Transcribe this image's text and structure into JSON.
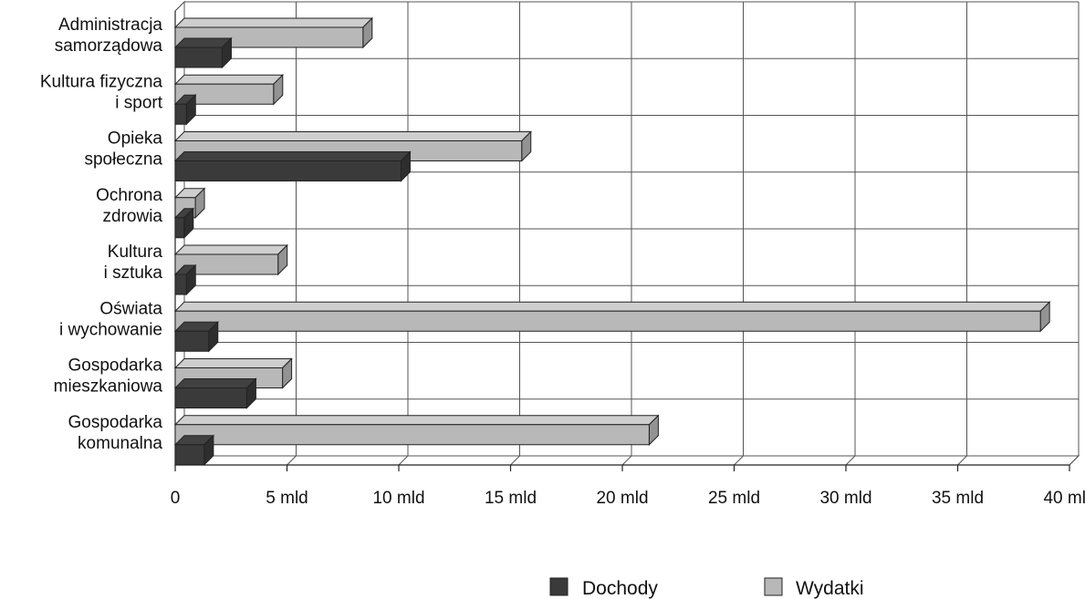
{
  "chart_data": {
    "type": "bar",
    "orientation": "horizontal",
    "three_d": true,
    "categories": [
      [
        "Administracja",
        "samorządowa"
      ],
      [
        "Kultura fizyczna",
        "i sport"
      ],
      [
        "Opieka",
        "społeczna"
      ],
      [
        "Ochrona",
        "zdrowia"
      ],
      [
        "Kultura",
        "i sztuka"
      ],
      [
        "Oświata",
        "i wychowanie"
      ],
      [
        "Gospodarka",
        "mieszkaniowa"
      ],
      [
        "Gospodarka",
        "komunalna"
      ]
    ],
    "series": [
      {
        "name": "Wydatki",
        "color": "#b8b8b8",
        "values": [
          8.4,
          4.4,
          15.5,
          0.9,
          4.6,
          38.7,
          4.8,
          21.2
        ]
      },
      {
        "name": "Dochody",
        "color": "#3a3a3a",
        "values": [
          2.1,
          0.5,
          10.1,
          0.4,
          0.5,
          1.5,
          3.2,
          1.3
        ]
      }
    ],
    "xlim": [
      0,
      40
    ],
    "xticks": [
      0,
      5,
      10,
      15,
      20,
      25,
      30,
      35,
      40
    ],
    "xtick_labels": [
      "0",
      "5 mld",
      "10 mld",
      "15 mld",
      "20 mld",
      "25 mld",
      "30 mld",
      "35 mld",
      "40 mld"
    ],
    "grid": true,
    "legend": {
      "position": "bottom",
      "items": [
        {
          "name": "Dochody",
          "color": "#3a3a3a"
        },
        {
          "name": "Wydatki",
          "color": "#b8b8b8"
        }
      ]
    },
    "title": "",
    "xlabel": "",
    "ylabel": ""
  }
}
